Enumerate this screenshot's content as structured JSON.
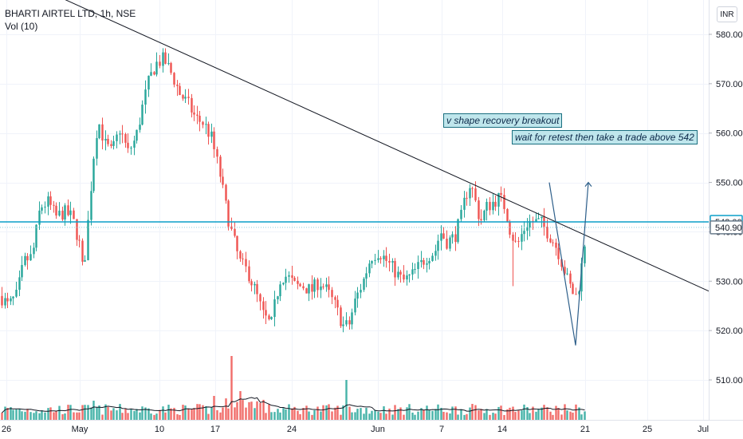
{
  "legend": {
    "symbol": "BHARTI AIRTEL LTD, 1h, NSE",
    "volume": "Vol (10)"
  },
  "currency_button": "INR",
  "colors": {
    "up": "#26a69a",
    "down": "#ef5350",
    "level": "#0c9fc8",
    "trendline": "#131722",
    "vshape": "#2e5f8a",
    "axis_text": "#131722"
  },
  "chart_data": {
    "type": "candlestick",
    "ylim": [
      502,
      585
    ],
    "y_ticks": [
      510,
      520,
      530,
      540,
      550,
      560,
      570,
      580
    ],
    "x_tick_labels": [
      "26",
      "May",
      "10",
      "17",
      "24",
      "Jun",
      "7",
      "14",
      "21",
      "25",
      "Jul"
    ],
    "price_labels": [
      "542.00",
      "540.90"
    ],
    "levels": [
      542.0,
      540.9
    ],
    "annotations": [
      "v shape recovery breakout",
      "wait for retest then take a trade above 542"
    ],
    "trendline": {
      "from": [
        0,
        593
      ],
      "to": [
        889,
        528
      ]
    },
    "v_shape": [
      [
        689,
        550
      ],
      [
        722,
        517
      ],
      [
        738,
        550
      ]
    ],
    "close_path": [
      [
        0,
        527
      ],
      [
        10,
        525
      ],
      [
        20,
        527
      ],
      [
        30,
        534
      ],
      [
        40,
        535
      ],
      [
        50,
        545
      ],
      [
        60,
        546
      ],
      [
        70,
        543
      ],
      [
        80,
        544
      ],
      [
        90,
        543
      ],
      [
        100,
        537
      ],
      [
        104,
        531
      ],
      [
        110,
        542
      ],
      [
        115,
        552
      ],
      [
        120,
        560
      ],
      [
        125,
        562
      ],
      [
        130,
        558
      ],
      [
        140,
        556
      ],
      [
        150,
        561
      ],
      [
        160,
        556
      ],
      [
        170,
        559
      ],
      [
        178,
        565
      ],
      [
        185,
        570
      ],
      [
        195,
        574
      ],
      [
        205,
        575
      ],
      [
        215,
        572
      ],
      [
        225,
        568
      ],
      [
        235,
        566
      ],
      [
        245,
        563
      ],
      [
        255,
        562
      ],
      [
        265,
        559
      ],
      [
        275,
        552
      ],
      [
        283,
        545
      ],
      [
        290,
        540
      ],
      [
        300,
        534
      ],
      [
        310,
        532
      ],
      [
        320,
        528
      ],
      [
        330,
        523
      ],
      [
        340,
        521
      ],
      [
        345,
        526
      ],
      [
        352,
        531
      ],
      [
        360,
        531
      ],
      [
        370,
        529
      ],
      [
        380,
        529
      ],
      [
        390,
        528
      ],
      [
        400,
        530
      ],
      [
        410,
        528
      ],
      [
        420,
        525
      ],
      [
        430,
        521
      ],
      [
        437,
        521
      ],
      [
        445,
        526
      ],
      [
        455,
        530
      ],
      [
        465,
        535
      ],
      [
        475,
        536
      ],
      [
        485,
        534
      ],
      [
        495,
        532
      ],
      [
        505,
        530
      ],
      [
        515,
        531
      ],
      [
        525,
        533
      ],
      [
        535,
        535
      ],
      [
        545,
        536
      ],
      [
        552,
        540
      ],
      [
        560,
        538
      ],
      [
        570,
        539
      ],
      [
        578,
        543
      ],
      [
        583,
        547
      ],
      [
        590,
        550
      ],
      [
        596,
        546
      ],
      [
        602,
        542
      ],
      [
        610,
        545
      ],
      [
        618,
        546
      ],
      [
        626,
        547
      ],
      [
        633,
        545
      ],
      [
        640,
        540
      ],
      [
        648,
        537
      ],
      [
        655,
        540
      ],
      [
        662,
        542
      ],
      [
        670,
        542
      ],
      [
        678,
        542
      ],
      [
        686,
        540
      ],
      [
        694,
        538
      ],
      [
        700,
        536
      ],
      [
        706,
        533
      ],
      [
        712,
        530
      ],
      [
        717,
        528
      ],
      [
        722,
        527
      ],
      [
        727,
        530
      ],
      [
        732,
        537
      ],
      [
        736,
        541
      ]
    ]
  }
}
